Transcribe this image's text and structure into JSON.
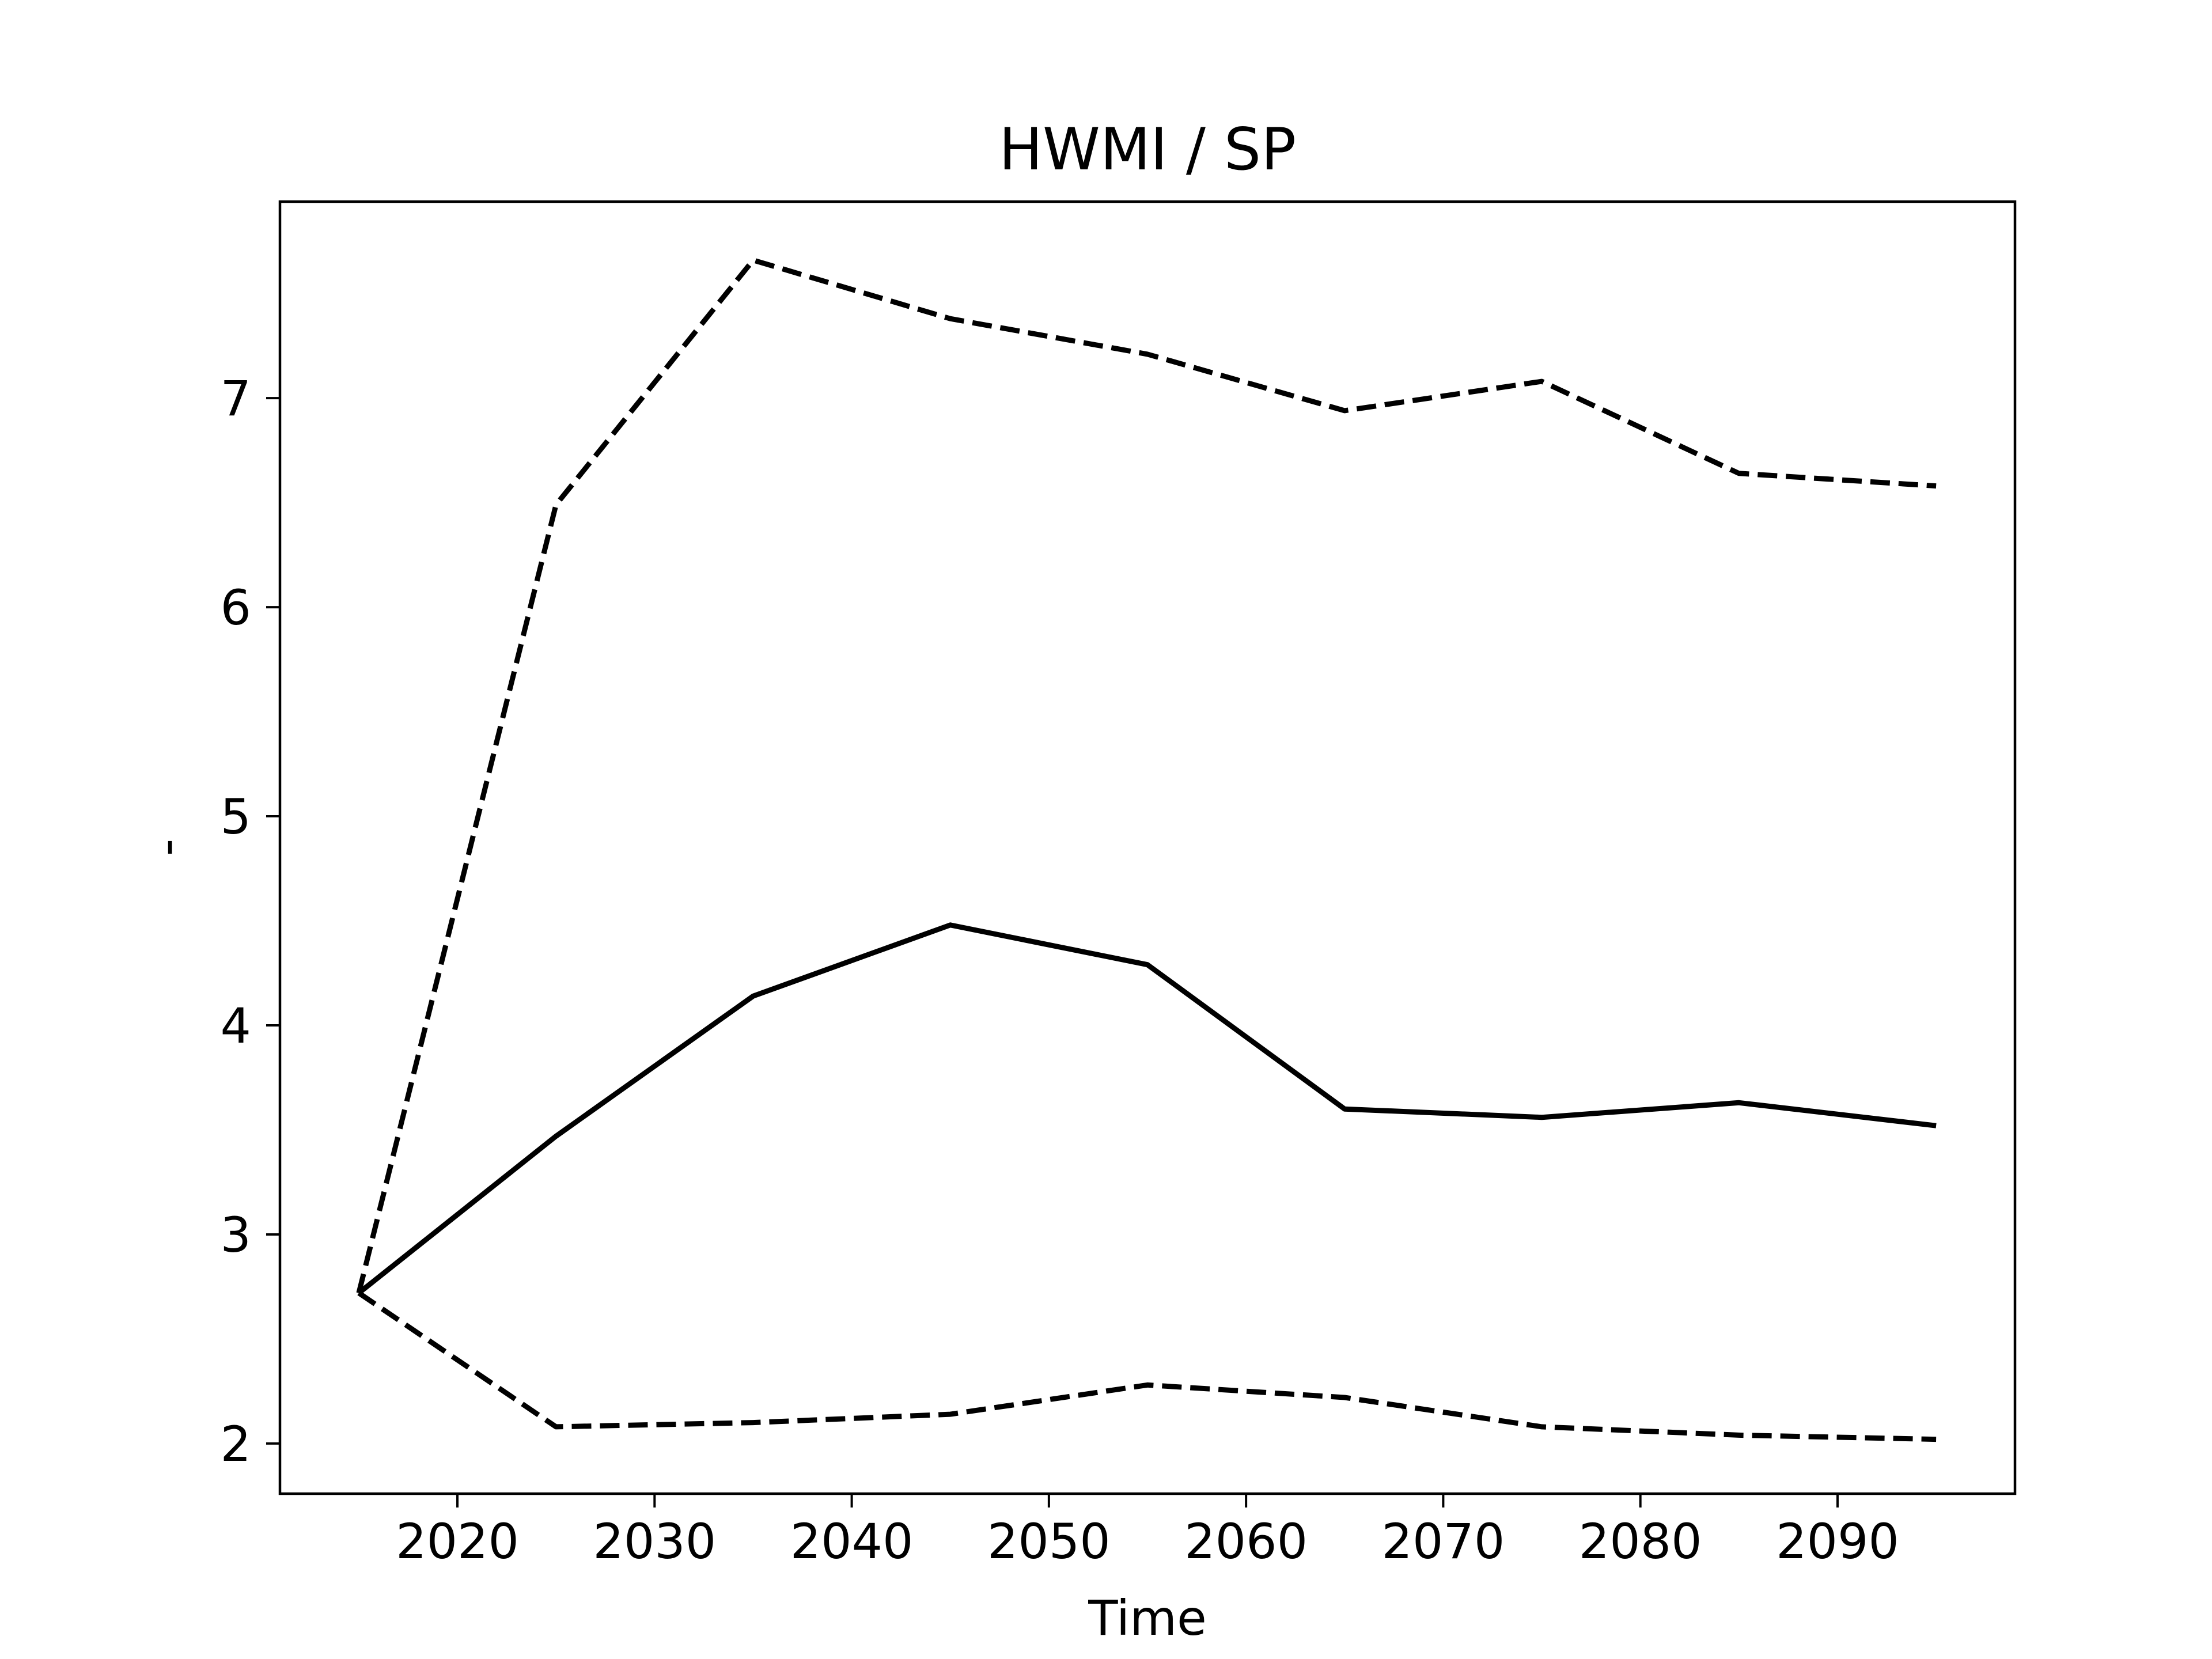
{
  "chart_data": {
    "type": "line",
    "title": "HWMI / SP",
    "xlabel": "Time",
    "ylabel": "-",
    "x": [
      2015,
      2025,
      2035,
      2045,
      2055,
      2065,
      2075,
      2085,
      2095
    ],
    "series": [
      {
        "values": [
          2.72,
          3.47,
          4.14,
          4.48,
          4.29,
          3.6,
          3.56,
          3.63,
          3.52
        ],
        "style": "solid",
        "color": "#000000"
      },
      {
        "values": [
          2.72,
          6.49,
          7.66,
          7.38,
          7.21,
          6.94,
          7.08,
          6.64,
          6.58
        ],
        "style": "dashed",
        "color": "#000000"
      },
      {
        "values": [
          2.72,
          2.08,
          2.1,
          2.14,
          2.28,
          2.22,
          2.08,
          2.04,
          2.02
        ],
        "style": "dashed",
        "color": "#000000"
      }
    ],
    "xlim": [
      2011,
      2099
    ],
    "ylim": [
      1.76,
      7.94
    ],
    "xticks": [
      2020,
      2030,
      2040,
      2050,
      2060,
      2070,
      2080,
      2090
    ],
    "yticks": [
      2,
      3,
      4,
      5,
      6,
      7
    ],
    "grid": false,
    "legend": "none"
  }
}
